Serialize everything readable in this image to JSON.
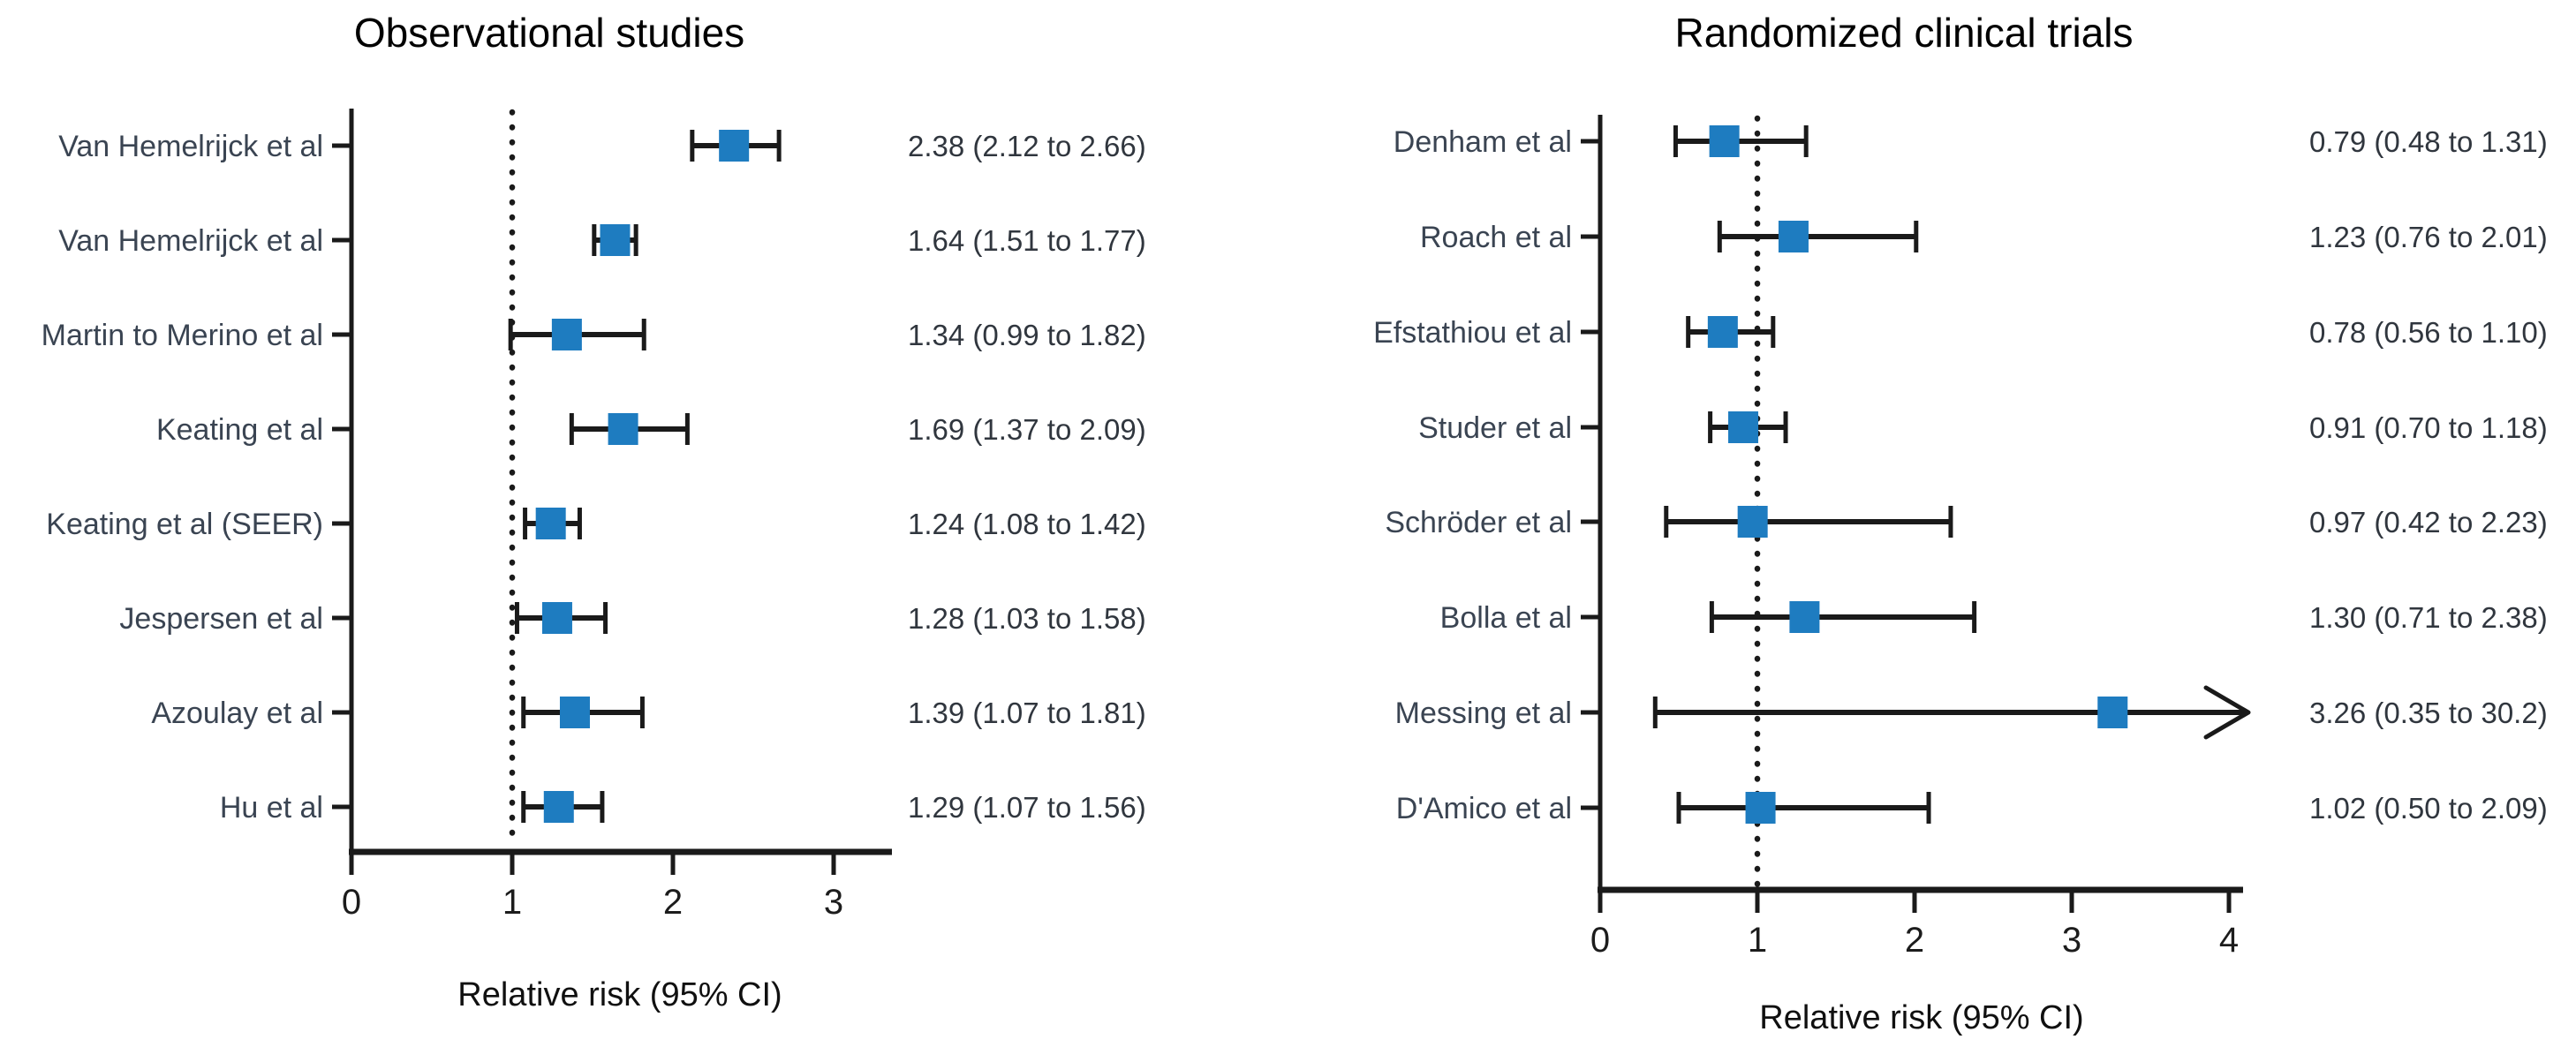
{
  "figure": {
    "kind": "forest-plot",
    "marker_color": "#1e7cc0",
    "axis_color": "#1a1a1a",
    "label_color": "#3a4452",
    "value_color": "#30363e"
  },
  "chart_data": [
    {
      "type": "scatter",
      "subtype": "forest",
      "title": "Observational studies",
      "xlabel": "Relative risk (95% CI)",
      "ylabel": "",
      "x_ticks": [
        0,
        1,
        2,
        3
      ],
      "xlim": [
        0,
        3.36
      ],
      "reference_line_x": 1,
      "grid": false,
      "categories": [
        "Van Hemelrijck et al",
        "Van Hemelrijck et al",
        "Martin to Merino et al",
        "Keating et al",
        "Keating et al (SEER)",
        "Jespersen et al",
        "Azoulay et al",
        "Hu et al"
      ],
      "series": [
        {
          "name": "Relative risk",
          "values": [
            2.38,
            1.64,
            1.34,
            1.69,
            1.24,
            1.28,
            1.39,
            1.29
          ]
        }
      ],
      "ci_lower": [
        2.12,
        1.51,
        0.99,
        1.37,
        1.08,
        1.03,
        1.07,
        1.07
      ],
      "ci_upper": [
        2.66,
        1.77,
        1.82,
        2.09,
        1.42,
        1.58,
        1.81,
        1.56
      ],
      "upper_arrow_clipped": [
        false,
        false,
        false,
        false,
        false,
        false,
        false,
        false
      ],
      "annotations": [
        "2.38 (2.12 to 2.66)",
        "1.64 (1.51 to 1.77)",
        "1.34 (0.99 to 1.82)",
        "1.69 (1.37 to 2.09)",
        "1.24 (1.08 to 1.42)",
        "1.28 (1.03 to 1.58)",
        "1.39 (1.07 to 1.81)",
        "1.29 (1.07 to 1.56)"
      ]
    },
    {
      "type": "scatter",
      "subtype": "forest",
      "title": "Randomized clinical trials",
      "xlabel": "Relative risk (95% CI)",
      "ylabel": "",
      "x_ticks": [
        0,
        1,
        2,
        3,
        4
      ],
      "xlim": [
        0,
        4.09
      ],
      "reference_line_x": 1,
      "grid": false,
      "categories": [
        "Denham et al",
        "Roach et al",
        "Efstathiou et al",
        "Studer et al",
        "Schröder et al",
        "Bolla et al",
        "Messing et al",
        "D'Amico et al"
      ],
      "series": [
        {
          "name": "Relative risk",
          "values": [
            0.79,
            1.23,
            0.78,
            0.91,
            0.97,
            1.3,
            3.26,
            1.02
          ]
        }
      ],
      "ci_lower": [
        0.48,
        0.76,
        0.56,
        0.7,
        0.42,
        0.71,
        0.35,
        0.5
      ],
      "ci_upper": [
        1.31,
        2.01,
        1.1,
        1.18,
        2.23,
        2.38,
        30.2,
        2.09
      ],
      "upper_arrow_clipped": [
        false,
        false,
        false,
        false,
        false,
        false,
        true,
        false
      ],
      "annotations": [
        "0.79 (0.48 to 1.31)",
        "1.23 (0.76 to 2.01)",
        "0.78 (0.56 to 1.10)",
        "0.91 (0.70 to 1.18)",
        "0.97 (0.42 to 2.23)",
        "1.30 (0.71 to 2.38)",
        "3.26 (0.35 to 30.2)",
        "1.02 (0.50 to 2.09)"
      ]
    }
  ]
}
